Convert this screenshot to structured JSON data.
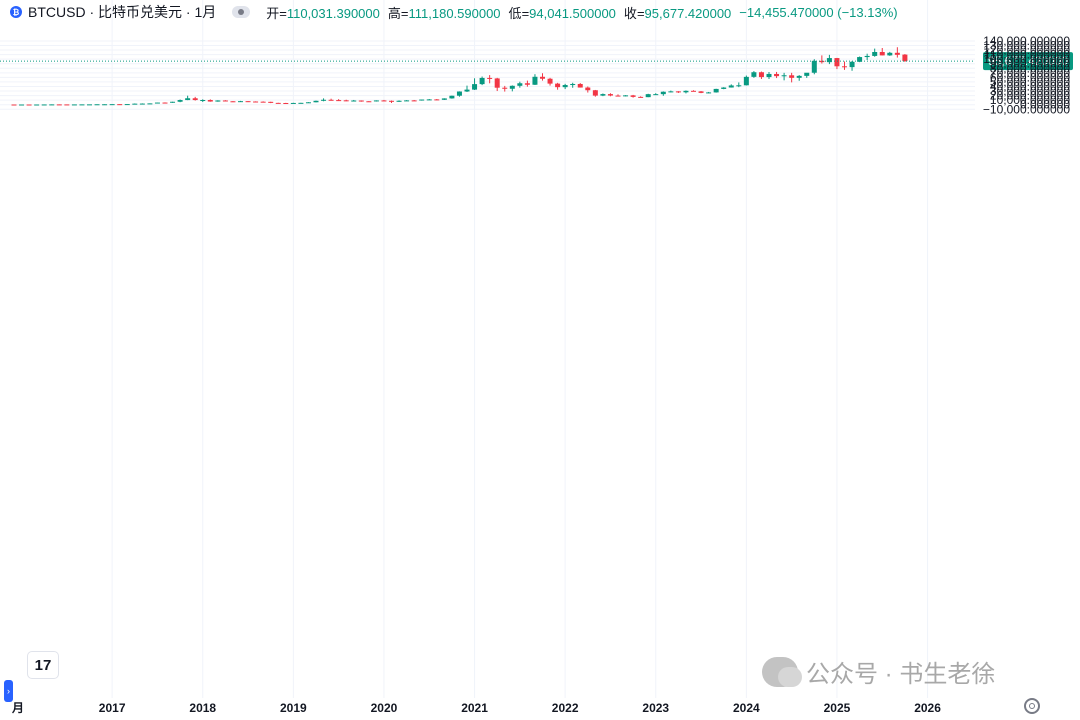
{
  "header": {
    "symbol_title": "BTCUSD · 比特币兑美元 · 1月",
    "open_label": "开",
    "open_value": "110,031.390000",
    "high_label": "高",
    "high_value": "111,180.590000",
    "low_label": "低",
    "low_value": "94,041.500000",
    "close_label": "收",
    "close_value": "95,677.420000",
    "change": "−14,455.470000 (−13.13%)"
  },
  "logo_text": "17",
  "side_tab_label": "›",
  "watermark": {
    "text": "公众号 · 书生老徐"
  },
  "colors": {
    "up": "#089981",
    "down": "#f23645",
    "grid": "#f0f3fa",
    "axis_text": "#131722",
    "last_price": "#089981"
  },
  "chart_data": {
    "type": "candlestick",
    "interval": "1M",
    "y_axis": {
      "min": -10000,
      "max": 140000,
      "ticks": [
        -10000,
        0,
        10000,
        20000,
        30000,
        40000,
        50000,
        60000,
        70000,
        80000,
        90000,
        100000,
        110000,
        120000,
        130000,
        140000
      ],
      "tick_labels": [
        "−10,000.000000",
        "0.000000",
        "10,000.000000",
        "20,000.000000",
        "30,000.000000",
        "40,000.000000",
        "50,000.000000",
        "60,000.000000",
        "70,000.000000",
        "80,000.000000",
        "90,000.000000",
        "100,000.000000",
        "110,000.000000",
        "120,000.000000",
        "130,000.000000",
        "140,000.000000"
      ]
    },
    "x_axis": {
      "labels": [
        "月",
        "2017",
        "2018",
        "2019",
        "2020",
        "2021",
        "2022",
        "2023",
        "2024",
        "2025",
        "2026"
      ],
      "label_index": [
        -1.5,
        13,
        25,
        37,
        49,
        61,
        73,
        85,
        97,
        109,
        121
      ]
    },
    "last_price": 95677.42,
    "last_price_label": "95,677.420000",
    "start": "2016-01",
    "candles": [
      [
        430,
        440,
        350,
        370
      ],
      [
        370,
        440,
        360,
        437
      ],
      [
        437,
        440,
        400,
        416
      ],
      [
        416,
        450,
        410,
        448
      ],
      [
        448,
        540,
        440,
        531
      ],
      [
        531,
        780,
        520,
        673
      ],
      [
        673,
        700,
        480,
        624
      ],
      [
        624,
        630,
        540,
        574
      ],
      [
        574,
        615,
        570,
        609
      ],
      [
        609,
        740,
        605,
        701
      ],
      [
        701,
        755,
        690,
        745
      ],
      [
        745,
        980,
        740,
        964
      ],
      [
        964,
        1150,
        750,
        965
      ],
      [
        965,
        1200,
        920,
        1190
      ],
      [
        1190,
        1290,
        890,
        1080
      ],
      [
        1080,
        1350,
        1060,
        1348
      ],
      [
        1348,
        2760,
        1340,
        2300
      ],
      [
        2300,
        2980,
        2100,
        2480
      ],
      [
        2480,
        2950,
        1850,
        2875
      ],
      [
        2875,
        4480,
        2700,
        4700
      ],
      [
        4700,
        5000,
        3000,
        4340
      ],
      [
        4340,
        6470,
        4110,
        6470
      ],
      [
        6470,
        11400,
        5500,
        10200
      ],
      [
        10200,
        19800,
        10000,
        14150
      ],
      [
        14150,
        17200,
        9000,
        10200
      ],
      [
        10200,
        11800,
        6000,
        10300
      ],
      [
        10300,
        11700,
        6500,
        6900
      ],
      [
        6900,
        9800,
        6500,
        9250
      ],
      [
        9250,
        10000,
        7000,
        7500
      ],
      [
        7500,
        7750,
        5800,
        6400
      ],
      [
        6400,
        8500,
        5900,
        7740
      ],
      [
        7740,
        7780,
        5800,
        7020
      ],
      [
        7020,
        7420,
        6100,
        6630
      ],
      [
        6630,
        7460,
        6200,
        6300
      ],
      [
        6300,
        6500,
        3500,
        4000
      ],
      [
        4000,
        4250,
        3150,
        3700
      ],
      [
        3700,
        4100,
        3350,
        3450
      ],
      [
        3450,
        4200,
        3400,
        3850
      ],
      [
        3850,
        4100,
        3700,
        4100
      ],
      [
        4100,
        5600,
        4050,
        5300
      ],
      [
        5300,
        9000,
        5200,
        8550
      ],
      [
        8550,
        13900,
        7500,
        10800
      ],
      [
        10800,
        13200,
        9100,
        10080
      ],
      [
        10080,
        12300,
        9300,
        9600
      ],
      [
        9600,
        10950,
        7700,
        8300
      ],
      [
        8300,
        10400,
        7300,
        9150
      ],
      [
        9150,
        9500,
        6500,
        7550
      ],
      [
        7550,
        7700,
        6400,
        7200
      ],
      [
        7200,
        9600,
        6900,
        9350
      ],
      [
        9350,
        10500,
        8450,
        8540
      ],
      [
        8540,
        9200,
        3850,
        6420
      ],
      [
        6420,
        9500,
        6150,
        8630
      ],
      [
        8630,
        10100,
        8100,
        9450
      ],
      [
        9450,
        10400,
        8900,
        9140
      ],
      [
        9140,
        11400,
        8900,
        11350
      ],
      [
        11350,
        12500,
        10500,
        11650
      ],
      [
        11650,
        12500,
        9900,
        10780
      ],
      [
        10780,
        14100,
        10400,
        13800
      ],
      [
        13800,
        19900,
        13200,
        19700
      ],
      [
        19700,
        29300,
        17600,
        28950
      ],
      [
        28950,
        42000,
        28000,
        33100
      ],
      [
        33100,
        58000,
        32300,
        45200
      ],
      [
        45200,
        61800,
        43000,
        58800
      ],
      [
        58800,
        65000,
        47000,
        57700
      ],
      [
        57700,
        59000,
        30000,
        37300
      ],
      [
        37300,
        41300,
        28800,
        35000
      ],
      [
        35000,
        42400,
        29300,
        41500
      ],
      [
        41500,
        50500,
        37400,
        47100
      ],
      [
        47100,
        52900,
        39600,
        43800
      ],
      [
        43800,
        67000,
        43300,
        61300
      ],
      [
        61300,
        69000,
        53000,
        57000
      ],
      [
        57000,
        59000,
        42000,
        46300
      ],
      [
        46300,
        48000,
        33000,
        38500
      ],
      [
        38500,
        45800,
        34300,
        43200
      ],
      [
        43200,
        48200,
        37200,
        45500
      ],
      [
        45500,
        47500,
        37600,
        37700
      ],
      [
        37700,
        40000,
        26700,
        31800
      ],
      [
        31800,
        32400,
        17600,
        19950
      ],
      [
        19950,
        24600,
        18800,
        23300
      ],
      [
        23300,
        25200,
        18500,
        20050
      ],
      [
        20050,
        22800,
        18100,
        19400
      ],
      [
        19400,
        21000,
        18200,
        20500
      ],
      [
        20500,
        21500,
        15500,
        17150
      ],
      [
        17150,
        18400,
        16300,
        16550
      ],
      [
        16550,
        23950,
        16500,
        23150
      ],
      [
        23150,
        25250,
        21400,
        23150
      ],
      [
        23150,
        29200,
        19550,
        28450
      ],
      [
        28450,
        31000,
        26900,
        29250
      ],
      [
        29250,
        29800,
        25800,
        27200
      ],
      [
        27200,
        31400,
        24800,
        30480
      ],
      [
        30480,
        31800,
        28900,
        29230
      ],
      [
        29230,
        30000,
        25300,
        25940
      ],
      [
        25940,
        28000,
        24900,
        26970
      ],
      [
        26970,
        35000,
        26500,
        34650
      ],
      [
        34650,
        38500,
        34000,
        37720
      ],
      [
        37720,
        44700,
        37600,
        42280
      ],
      [
        42280,
        48900,
        38500,
        42580
      ],
      [
        42580,
        64000,
        42200,
        61130
      ],
      [
        61130,
        73800,
        59000,
        71330
      ],
      [
        71330,
        72800,
        56500,
        60640
      ],
      [
        60640,
        71900,
        56500,
        67500
      ],
      [
        67500,
        72000,
        58500,
        62680
      ],
      [
        62680,
        70000,
        53500,
        64620
      ],
      [
        64620,
        70000,
        49000,
        58970
      ],
      [
        58970,
        65000,
        52500,
        63300
      ],
      [
        63300,
        69500,
        58900,
        70200
      ],
      [
        70200,
        99800,
        66800,
        96400
      ],
      [
        96400,
        108300,
        90500,
        93400
      ],
      [
        93400,
        109500,
        89200,
        102400
      ],
      [
        102400,
        102800,
        78200,
        84350
      ],
      [
        84350,
        95000,
        76600,
        82550
      ],
      [
        82550,
        95700,
        74500,
        94200
      ],
      [
        94200,
        105800,
        93400,
        104600
      ],
      [
        104600,
        112000,
        98200,
        107100
      ],
      [
        107100,
        123200,
        105300,
        115750
      ],
      [
        115750,
        124500,
        108000,
        108250
      ],
      [
        108250,
        116000,
        107300,
        114000
      ],
      [
        114000,
        126200,
        103500,
        109500
      ],
      [
        110031.39,
        111180.59,
        94041.5,
        95677.42
      ]
    ]
  }
}
